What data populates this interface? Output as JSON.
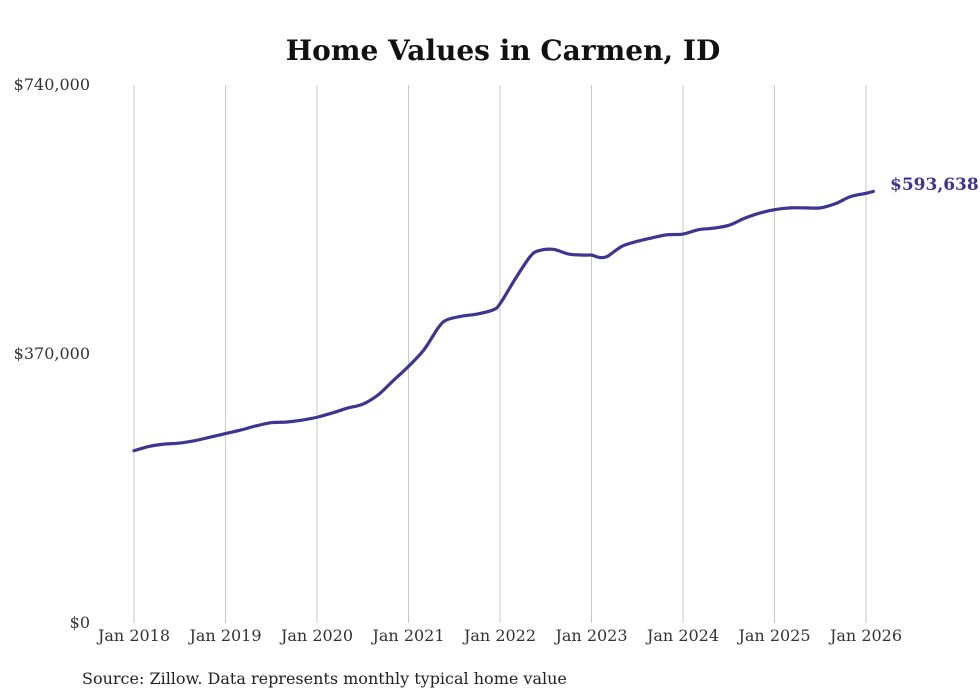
{
  "chart_data": {
    "type": "line",
    "title": "Home Values in Carmen, ID",
    "xlabel": "",
    "ylabel": "",
    "ylim": [
      0,
      740000
    ],
    "y_ticks": [
      {
        "value": 0,
        "label": "$0"
      },
      {
        "value": 370000,
        "label": "$370,000"
      },
      {
        "value": 740000,
        "label": "$740,000"
      }
    ],
    "x_ticks": [
      {
        "value": 2018,
        "label": "Jan 2018"
      },
      {
        "value": 2019,
        "label": "Jan 2019"
      },
      {
        "value": 2020,
        "label": "Jan 2020"
      },
      {
        "value": 2021,
        "label": "Jan 2021"
      },
      {
        "value": 2022,
        "label": "Jan 2022"
      },
      {
        "value": 2023,
        "label": "Jan 2023"
      },
      {
        "value": 2024,
        "label": "Jan 2024"
      },
      {
        "value": 2025,
        "label": "Jan 2025"
      },
      {
        "value": 2026,
        "label": "Jan 2026"
      }
    ],
    "xlim": [
      2018,
      2026.08
    ],
    "grid": "vertical",
    "series": [
      {
        "name": "Typical home value",
        "color": "#3d3590",
        "x": [
          2018.0,
          2018.17,
          2018.33,
          2018.5,
          2018.67,
          2018.83,
          2019.0,
          2019.17,
          2019.33,
          2019.5,
          2019.67,
          2019.83,
          2020.0,
          2020.17,
          2020.33,
          2020.5,
          2020.67,
          2020.83,
          2021.0,
          2021.17,
          2021.33,
          2021.42,
          2021.58,
          2021.75,
          2021.92,
          2022.0,
          2022.17,
          2022.33,
          2022.42,
          2022.58,
          2022.75,
          2022.92,
          2023.0,
          2023.08,
          2023.17,
          2023.33,
          2023.5,
          2023.67,
          2023.83,
          2024.0,
          2024.17,
          2024.33,
          2024.5,
          2024.67,
          2024.83,
          2025.0,
          2025.17,
          2025.33,
          2025.5,
          2025.67,
          2025.83,
          2026.0,
          2026.08
        ],
        "values": [
          237000,
          243000,
          246000,
          247500,
          251000,
          255500,
          260500,
          265500,
          271000,
          275500,
          276500,
          279000,
          283000,
          289000,
          295500,
          301000,
          314000,
          333000,
          353000,
          376000,
          407000,
          417000,
          422000,
          425000,
          430500,
          439000,
          474000,
          504000,
          512000,
          514000,
          507500,
          506000,
          506000,
          503000,
          504000,
          518000,
          525000,
          530000,
          534000,
          535000,
          541000,
          543000,
          547000,
          556500,
          563500,
          568500,
          571000,
          571000,
          571000,
          577000,
          586500,
          591000,
          593638
        ]
      }
    ],
    "end_label": "$593,638",
    "source": "Source: Zillow. Data represents monthly typical home value"
  }
}
